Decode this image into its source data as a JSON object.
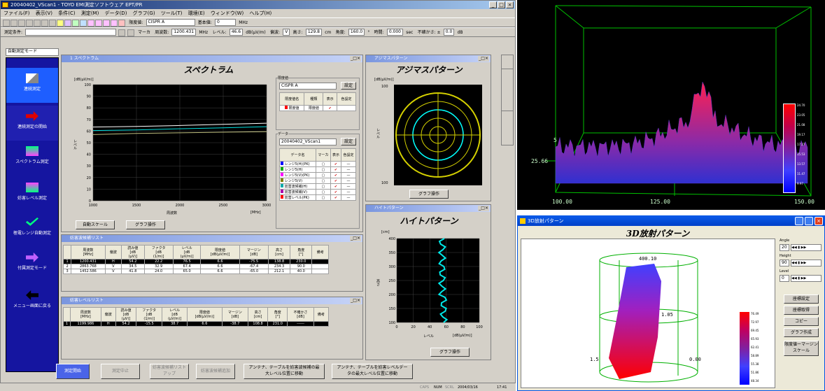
{
  "main": {
    "title": "20040402_VScan1 - TOYO EMI測定ソフトウェア EPT/PR",
    "menu": [
      "ファイル(F)",
      "表示(V)",
      "条件(C)",
      "測定(M)",
      "データ(D)",
      "グラフ(G)",
      "ツール(T)",
      "環境(E)",
      "ウィンドウ(W)",
      "ヘルプ(H)"
    ],
    "toolbar": {
      "limit_label": "限度値:",
      "limit_value": "CISPR A",
      "basic_label": "基本値:",
      "basic_value": "0",
      "basic_unit": "MHz"
    },
    "toolbar2": {
      "cond_label": "測定条件:",
      "marker_label": "マーカ",
      "freq_label": "周波数:",
      "freq_value": "1200.431",
      "freq_unit": "MHz",
      "level_label": "レベル:",
      "level_value": "46.6",
      "level_unit": "dB(μV/m)",
      "pol_label": "偏波:",
      "pol_value": "V",
      "height_label": "高さ:",
      "height_value": "129.8",
      "height_unit": "cm",
      "angle_label": "角度:",
      "angle_value": "160.0",
      "angle_unit": "°",
      "time_label": "時間:",
      "time_value": "0.000",
      "time_unit": "sec",
      "uncert_label": "不確かさ: ±",
      "uncert_value": "0.0",
      "uncert_unit": "dB"
    },
    "mode_select": "自動測定モード",
    "sidebar": [
      "連続測定",
      "連続測定の開始",
      "スペクトラム測定",
      "妨害レベル測定",
      "極電レンジ自動測定",
      "付属測定モード",
      "メニュー画面に戻る"
    ],
    "status": {
      "caps": "CAPS",
      "num": "NUM",
      "scrl": "SCRL",
      "date": "2004/03/16",
      "time": "17:41"
    },
    "bottom_buttons": [
      "測定開始",
      "測定中止",
      "妨害波候補リスト\nアップ",
      "妨害波候補追加",
      "アンテナ、テーブルを妨害波候補の最\n大レベル位置に移動",
      "アンテナ、テーブルを妨害レベルデー\nタの最大レベル位置に移動"
    ]
  },
  "spectrum": {
    "win_title": "1 スペクトラム",
    "title": "スペクトラム",
    "unit": "[dB(μV/m)]",
    "ylabel": "レベル",
    "xlabel": "周波数",
    "xunit": "[MHz]",
    "yticks": [
      "100",
      "90",
      "80",
      "70",
      "60",
      "50",
      "40",
      "30",
      "20",
      "10",
      "0"
    ],
    "xticks": [
      "1000",
      "1500",
      "2000",
      "2500",
      "3000"
    ],
    "btn_autoscale": "自動スケール",
    "btn_graph": "グラフ操作",
    "limit_group": "限度値",
    "limit_select": "CISPR A",
    "limit_setting": "設定",
    "limit_cols": [
      "限度値名",
      "種類",
      "表示",
      "色設定"
    ],
    "limit_row": [
      "限度値",
      "限度値"
    ],
    "data_group": "データ",
    "data_select": "20040402_VScan1",
    "data_setting": "設定",
    "data_cols": [
      "データ名",
      "マーカ",
      "表示",
      "色設定"
    ],
    "data_rows": [
      "レンジ5(H)(PK)",
      "レンジ5(H)",
      "レンジ5(V)(PK)",
      "レンジ5(V)",
      "妨害波候補(H)",
      "妨害波候補(V)",
      "妨害レベル(PK)"
    ],
    "data_row_colors": [
      "#0000ff",
      "#00aa00",
      "#ff00ff",
      "#808000",
      "#00aaaa",
      "#aa00aa",
      "#ff0000"
    ]
  },
  "chart_data": {
    "type": "line",
    "x": [
      1000,
      1500,
      2000,
      2500,
      3000
    ],
    "series": [
      {
        "values": [
          63.5,
          64.0,
          64.8,
          65.8,
          66.8
        ]
      },
      {
        "values": [
          60.5,
          61.0,
          62.0,
          62.8,
          63.8
        ]
      },
      {
        "values": [
          57,
          58,
          58.5,
          59,
          59.5
        ]
      }
    ],
    "xlabel": "周波数",
    "ylabel": "レベル",
    "xlim": [
      1000,
      3000
    ],
    "ylim": [
      0,
      100
    ]
  },
  "azimuth": {
    "win_title": "アジマスパターン",
    "title": "アジマスパターン",
    "unit": "[dB(μV/m)]",
    "ylabel": "レベル",
    "top": "100",
    "bottom": "100",
    "btn_graph": "グラフ操作"
  },
  "height": {
    "win_title": "ハイトパターン",
    "title": "ハイトパターン",
    "unit": "[cm]",
    "yticks": [
      "400",
      "350",
      "300",
      "250",
      "200",
      "150",
      "100"
    ],
    "xticks": [
      "0",
      "20",
      "40",
      "60",
      "80",
      "100"
    ],
    "ylabel": "高さ",
    "xlabel": "レベル",
    "xunit": "[dB(μV/m)]",
    "btn_graph": "グラフ操作"
  },
  "candidates": {
    "win_title": "妨害波候補リスト",
    "cols": [
      "周波数\n[MHz]",
      "偏波",
      "読み値\n[dB\n(μV)]",
      "ファクタ\n[dB\n(1/m)]",
      "レベル\n[dB\n(μV/m)]",
      "限度値\n[dB(μV/m)]",
      "マージン\n[dB]",
      "高さ\n[cm]",
      "角度\n[°]",
      "備考"
    ],
    "rows": [
      [
        "1",
        "1200.431",
        "H",
        "54.2",
        "22.2",
        "76.5",
        "6.6",
        "-75.5",
        "138.8",
        "230.0",
        ""
      ],
      [
        "2",
        "2863.768",
        "V",
        "34.5",
        "32.9",
        "67.4",
        "6.6",
        "-67.4",
        "234.3",
        "90.0",
        ""
      ],
      [
        "3",
        "1452.586",
        "V",
        "41.8",
        "24.0",
        "65.0",
        "6.6",
        "-65.0",
        "212.1",
        "40.0",
        ""
      ]
    ]
  },
  "levels": {
    "win_title": "妨害レベルリスト",
    "cols": [
      "周波数\n[MHz]",
      "偏波",
      "読み値\n[dB\n(μV)]",
      "ファクタ\n[dB\n(1/m)]",
      "レベル\n[dB\n(μV/m)]",
      "限度値\n[dB(μV/m)]",
      "マージン\n[dB]",
      "高さ\n[cm]",
      "角度\n[°]",
      "不確かさ\n[dB]",
      "備考"
    ],
    "rows": [
      [
        "1",
        "1199.986",
        "H",
        "54.2",
        "-15.5",
        "38.7",
        "6.6",
        "-38.7",
        "108.8",
        "231.0",
        "------",
        ""
      ]
    ]
  },
  "plot3d": {
    "scale": [
      "24.70",
      "23.05",
      "21.08",
      "19.17",
      "17.27",
      "15.53",
      "13.57",
      "11.47",
      "9.97"
    ],
    "z_label": "25.66",
    "x_ticks": [
      "100.00",
      "125.00",
      "150.00"
    ],
    "z_tick": "5",
    "colors": {
      "top": "#ff0000",
      "bottom": "#0000ff"
    }
  },
  "radiation": {
    "win_title": "3D放射パターン",
    "title": "3D放射パターン",
    "angle_label": "Angle",
    "angle_value": "20",
    "height_label": "Height",
    "height_value": "90",
    "level_label": "Level",
    "level_value": "0",
    "buttons": [
      "座標設定",
      "座標取得",
      "コピー",
      "グラフ作成",
      "限度値ーマージンスケール"
    ],
    "top_label": "400.10",
    "mid_label": "1.05",
    "left_label": "1.5",
    "right_label": "0.00",
    "scale": [
      "76.49",
      "72.97",
      "69.45",
      "65.93",
      "62.41",
      "58.89",
      "55.38",
      "51.86",
      "48.34"
    ]
  }
}
